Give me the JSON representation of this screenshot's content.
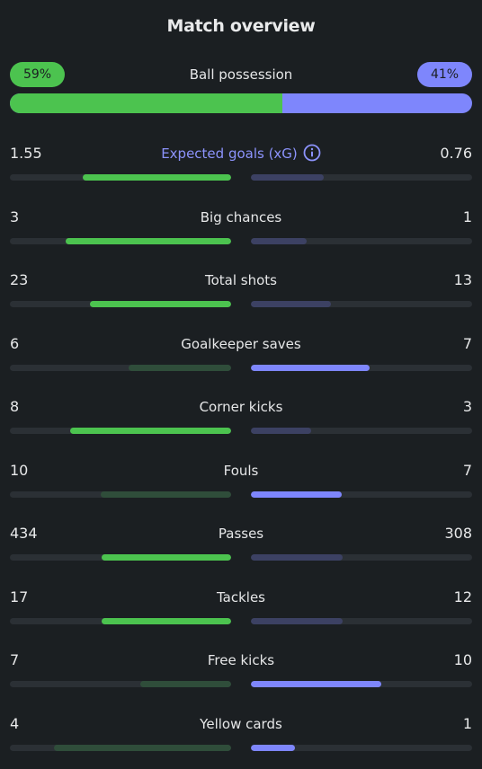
{
  "title": "Match overview",
  "colors": {
    "home_strong": "#4cc34f",
    "home_muted": "#2f4d3a",
    "away_strong": "#7e86fc",
    "away_muted": "#3c4163",
    "accent_text": "#8c93fc"
  },
  "possession": {
    "label": "Ball possession",
    "home_text": "59%",
    "away_text": "41%",
    "home_fraction": 0.59
  },
  "stats": [
    {
      "label": "Expected goals (xG)",
      "home": "1.55",
      "away": "0.76",
      "home_value": 1.55,
      "away_value": 0.76,
      "winner": "home",
      "info_icon": "info-icon",
      "accent": true
    },
    {
      "label": "Big chances",
      "home": "3",
      "away": "1",
      "home_value": 3,
      "away_value": 1,
      "winner": "home"
    },
    {
      "label": "Total shots",
      "home": "23",
      "away": "13",
      "home_value": 23,
      "away_value": 13,
      "winner": "home"
    },
    {
      "label": "Goalkeeper saves",
      "home": "6",
      "away": "7",
      "home_value": 6,
      "away_value": 7,
      "winner": "away"
    },
    {
      "label": "Corner kicks",
      "home": "8",
      "away": "3",
      "home_value": 8,
      "away_value": 3,
      "winner": "home"
    },
    {
      "label": "Fouls",
      "home": "10",
      "away": "7",
      "home_value": 10,
      "away_value": 7,
      "winner": "away"
    },
    {
      "label": "Passes",
      "home": "434",
      "away": "308",
      "home_value": 434,
      "away_value": 308,
      "winner": "home"
    },
    {
      "label": "Tackles",
      "home": "17",
      "away": "12",
      "home_value": 17,
      "away_value": 12,
      "winner": "home"
    },
    {
      "label": "Free kicks",
      "home": "7",
      "away": "10",
      "home_value": 7,
      "away_value": 10,
      "winner": "away"
    },
    {
      "label": "Yellow cards",
      "home": "4",
      "away": "1",
      "home_value": 4,
      "away_value": 1,
      "winner": "away"
    }
  ]
}
